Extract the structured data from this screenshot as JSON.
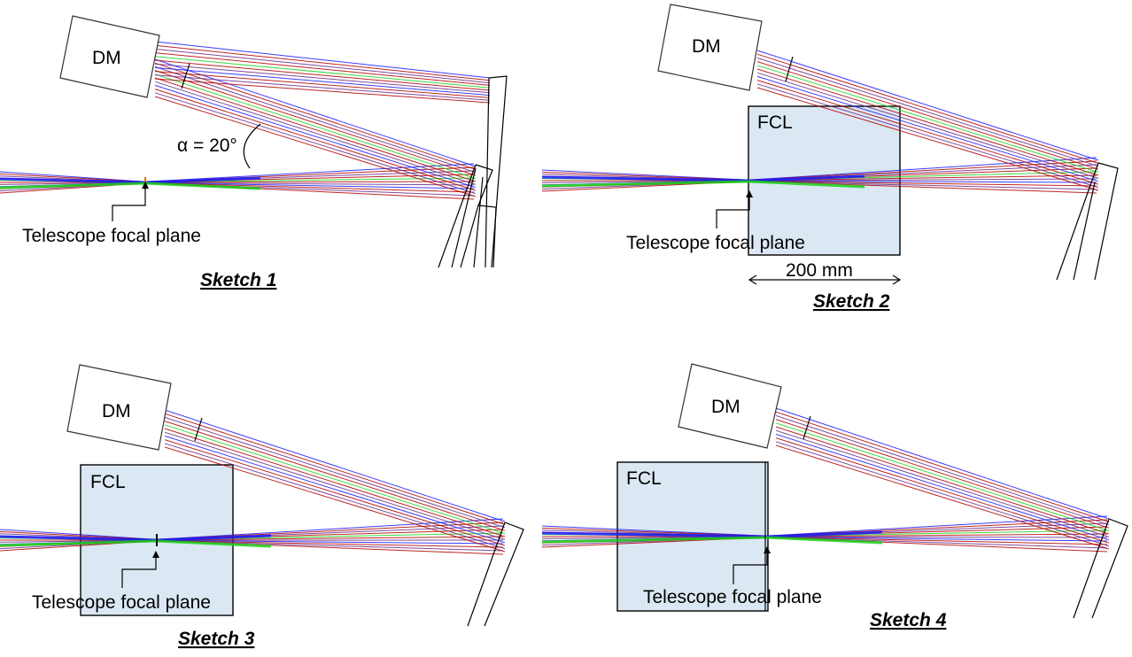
{
  "colors": {
    "ray_blue": "#1a1aff",
    "ray_red": "#b00000",
    "ray_purple": "#6a2a8a",
    "ray_green": "#19d119",
    "fcl_fill": "#dbe8f3"
  },
  "labels": {
    "dm": "DM",
    "fcl": "FCL",
    "focal_plane": "Telescope focal plane",
    "angle": "α = 20°",
    "length": "200 mm"
  },
  "sketches": [
    {
      "title": "Sketch 1"
    },
    {
      "title": "Sketch 2"
    },
    {
      "title": "Sketch 3"
    },
    {
      "title": "Sketch 4"
    }
  ]
}
